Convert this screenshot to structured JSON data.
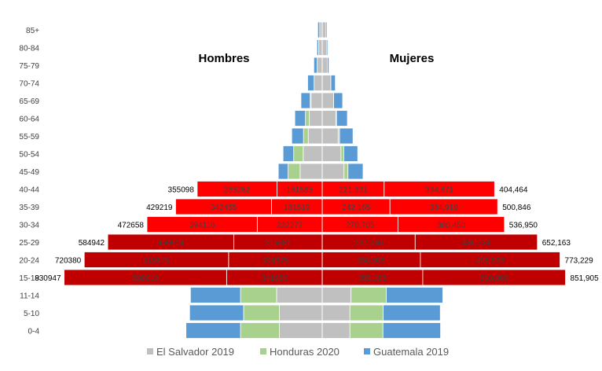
{
  "chart_data": {
    "type": "bar",
    "orientation": "horizontal-pyramid",
    "stacked": true,
    "categories": [
      "85+",
      "80-84",
      "75-79",
      "70-74",
      "65-69",
      "60-64",
      "55-59",
      "50-54",
      "45-49",
      "40-44",
      "35-39",
      "30-34",
      "25-29",
      "20-24",
      "15-19",
      "11-14",
      "5-10",
      "0-4"
    ],
    "title_left": "Hombres",
    "title_right": "Mujeres",
    "legend_position": "bottom",
    "grid": false,
    "colors": {
      "El Salvador 2019": "#c0c0c0",
      "Honduras 2020": "#a9d18e",
      "Guatemala 2019": "#5b9bd5",
      "highlight_red": "#ff0000",
      "highlight_darkred": "#c00000"
    },
    "series": [
      {
        "name": "El Salvador 2019",
        "men": [
          9000,
          13000,
          18000,
          29000,
          40000,
          46000,
          50000,
          68000,
          79000,
          161585,
          181519,
          232277,
          315681,
          334675,
          341656,
          163000,
          153000,
          153000
        ],
        "women": [
          14000,
          17000,
          18000,
          31000,
          41000,
          49000,
          57000,
          67000,
          78000,
          221331,
          242165,
          270705,
          332240,
          350905,
          359388,
          103000,
          99000,
          99000
        ]
      },
      {
        "name": "Honduras 2020",
        "men": [
          0,
          0,
          0,
          0,
          3000,
          14000,
          17000,
          34000,
          43000,
          285262,
          342455,
          394116,
          450914,
          515875,
          580910,
          129000,
          128000,
          139000
        ],
        "women": [
          0,
          0,
          0,
          0,
          0,
          2000,
          5000,
          10000,
          14000,
          394671,
          384919,
          380450,
          436734,
          498896,
          510060,
          126000,
          119000,
          118000
        ]
      },
      {
        "name": "Guatemala 2019",
        "men": [
          7000,
          6000,
          12000,
          23000,
          33000,
          38000,
          42000,
          38000,
          35000,
          0,
          0,
          0,
          0,
          0,
          0,
          179000,
          193000,
          195000
        ],
        "women": [
          4000,
          4000,
          6000,
          16000,
          32000,
          39000,
          48000,
          50000,
          54000,
          0,
          0,
          0,
          0,
          0,
          0,
          202000,
          204000,
          206000
        ]
      }
    ],
    "segment_labels": {
      "40-44": [
        "285262",
        "161585",
        "221,331",
        "394,671"
      ],
      "35-39": [
        "342455",
        "181519",
        "242,165",
        "384,919"
      ],
      "30-34": [
        "394116",
        "232277",
        "270,705",
        "380,450"
      ],
      "25-29": [
        "450914",
        "315681",
        "332,240",
        "436,734"
      ],
      "20-24": [
        "515875",
        "334675",
        "350,905",
        "498,896"
      ],
      "15-19": [
        "580910",
        "341656",
        "359,388",
        "510,060"
      ]
    },
    "totals_left": {
      "40-44": "355098",
      "35-39": "429219",
      "30-34": "472658",
      "25-29": "584942",
      "20-24": "720380",
      "15-19": "830947"
    },
    "totals_right": {
      "40-44": "404,464",
      "35-39": "500,846",
      "30-34": "536,950",
      "25-29": "652,163",
      "20-24": "773,229",
      "15-19": "851,905"
    },
    "red_rows": [
      "40-44",
      "35-39",
      "30-34"
    ],
    "darkred_rows": [
      "25-29",
      "20-24",
      "15-19"
    ]
  }
}
